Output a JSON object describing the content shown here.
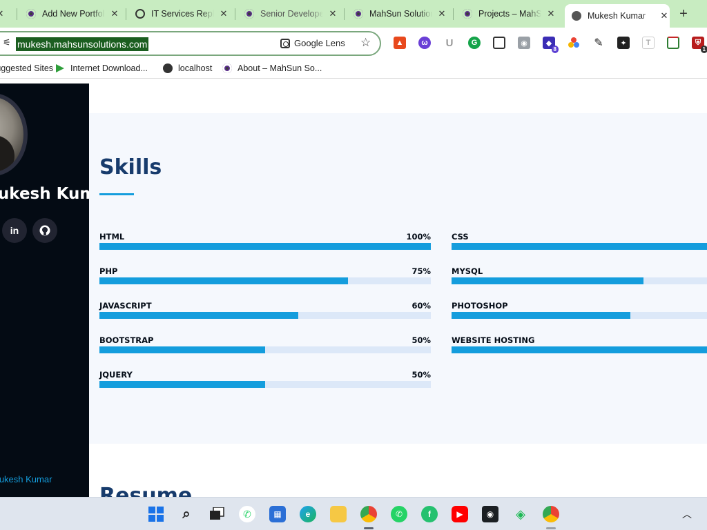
{
  "browser": {
    "tabs": [
      {
        "label": "Add New Portfolio",
        "favicon": "wordpress-favicon"
      },
      {
        "label": "IT Services Rephrase",
        "favicon": "openai-favicon"
      },
      {
        "label": "Senior Developer",
        "favicon": "wordpress-favicon"
      },
      {
        "label": "MahSun Solutions",
        "favicon": "wordpress-favicon"
      },
      {
        "label": "Projects – MahSun",
        "favicon": "wordpress-favicon"
      },
      {
        "label": "Mukesh Kumar",
        "favicon": "globe-favicon",
        "active": true
      }
    ],
    "url": "mukesh.mahsunsolutions.com",
    "lens_label": "Google Lens",
    "extension_badge_count": "8",
    "extension_badge_count_2": "1",
    "bookmarks": [
      "Suggested Sites",
      "Internet Download...",
      "localhost",
      "About – MahSun So..."
    ]
  },
  "sidebar": {
    "name": "Mukesh Kumar",
    "social": [
      {
        "icon": "linkedin-icon",
        "glyph": "in"
      },
      {
        "icon": "github-icon",
        "glyph": "⬤"
      }
    ],
    "footer_link": "Mukesh Kumar"
  },
  "skills": {
    "title": "Skills",
    "left": [
      {
        "name": "HTML",
        "value": "100%",
        "level": 100
      },
      {
        "name": "PHP",
        "value": "75%",
        "level": 75
      },
      {
        "name": "JAVASCRIPT",
        "value": "60%",
        "level": 60
      },
      {
        "name": "BOOTSTRAP",
        "value": "50%",
        "level": 50
      },
      {
        "name": "JQUERY",
        "value": "50%",
        "level": 50
      }
    ],
    "right": [
      {
        "name": "CSS",
        "level": 100
      },
      {
        "name": "MYSQL",
        "level": 75
      },
      {
        "name": "PHOTOSHOP",
        "level": 70
      },
      {
        "name": "WEBSITE HOSTING",
        "level": 100
      }
    ]
  },
  "resume": {
    "title": "Resume"
  },
  "colors": {
    "accent": "#149ddd",
    "heading": "#173b6c",
    "sidebar": "#040b14",
    "tabstrip": "#c8ecc1"
  },
  "taskbar": {
    "icons": [
      "start-icon",
      "search-icon",
      "task-view-icon",
      "whatsapp-icon",
      "store-icon",
      "edge-icon",
      "file-explorer-icon",
      "chrome-icon",
      "whatsapp-icon",
      "freshdesk-icon",
      "youtube-icon",
      "github-icon",
      "vpn-icon",
      "chrome-icon"
    ]
  }
}
